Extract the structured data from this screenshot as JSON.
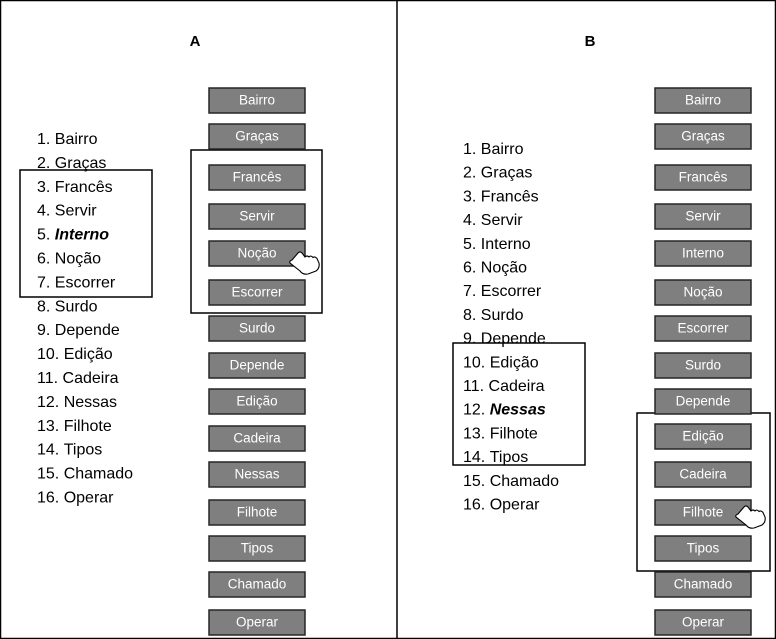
{
  "panels": [
    {
      "title": "A",
      "list": [
        {
          "number": "1.",
          "word": "Bairro"
        },
        {
          "number": "2.",
          "word": "Graças"
        },
        {
          "number": "3.",
          "word": "Francês"
        },
        {
          "number": "4.",
          "word": "Servir"
        },
        {
          "number": "5.",
          "word": "Interno"
        },
        {
          "number": "6.",
          "word": "Noção"
        },
        {
          "number": "7.",
          "word": "Escorrer"
        },
        {
          "number": "8.",
          "word": "Surdo"
        },
        {
          "number": "9.",
          "word": "Depende"
        },
        {
          "number": "10.",
          "word": "Edição"
        },
        {
          "number": "11.",
          "word": "Cadeira"
        },
        {
          "number": "12.",
          "word": "Nessas"
        },
        {
          "number": "13.",
          "word": "Filhote"
        },
        {
          "number": "14.",
          "word": "Tipos"
        },
        {
          "number": "15.",
          "word": "Chamado"
        },
        {
          "number": "16.",
          "word": "Operar"
        }
      ],
      "emphasized": 4,
      "buttons": [
        "Bairro",
        "Graças",
        "Francês",
        "Servir",
        "Noção",
        "Escorrer",
        "Surdo",
        "Depende",
        "Edição",
        "Cadeira",
        "Nessas",
        "Filhote",
        "Tipos",
        "Chamado",
        "Operar"
      ]
    },
    {
      "title": "B",
      "list": [
        {
          "number": "1.",
          "word": "Bairro"
        },
        {
          "number": "2.",
          "word": "Graças"
        },
        {
          "number": "3.",
          "word": "Francês"
        },
        {
          "number": "4.",
          "word": "Servir"
        },
        {
          "number": "5.",
          "word": "Interno"
        },
        {
          "number": "6.",
          "word": "Noção"
        },
        {
          "number": "7.",
          "word": "Escorrer"
        },
        {
          "number": "8.",
          "word": "Surdo"
        },
        {
          "number": "9.",
          "word": "Depende"
        },
        {
          "number": "10.",
          "word": "Edição"
        },
        {
          "number": "11.",
          "word": "Cadeira"
        },
        {
          "number": "12.",
          "word": "Nessas"
        },
        {
          "number": "13.",
          "word": "Filhote"
        },
        {
          "number": "14.",
          "word": "Tipos"
        },
        {
          "number": "15.",
          "word": "Chamado"
        },
        {
          "number": "16.",
          "word": "Operar"
        }
      ],
      "emphasized": 11,
      "buttons": [
        "Bairro",
        "Graças",
        "Francês",
        "Servir",
        "Interno",
        "Noção",
        "Escorrer",
        "Surdo",
        "Depende",
        "Edição",
        "Cadeira",
        "Filhote",
        "Tipos",
        "Chamado",
        "Operar"
      ]
    }
  ]
}
